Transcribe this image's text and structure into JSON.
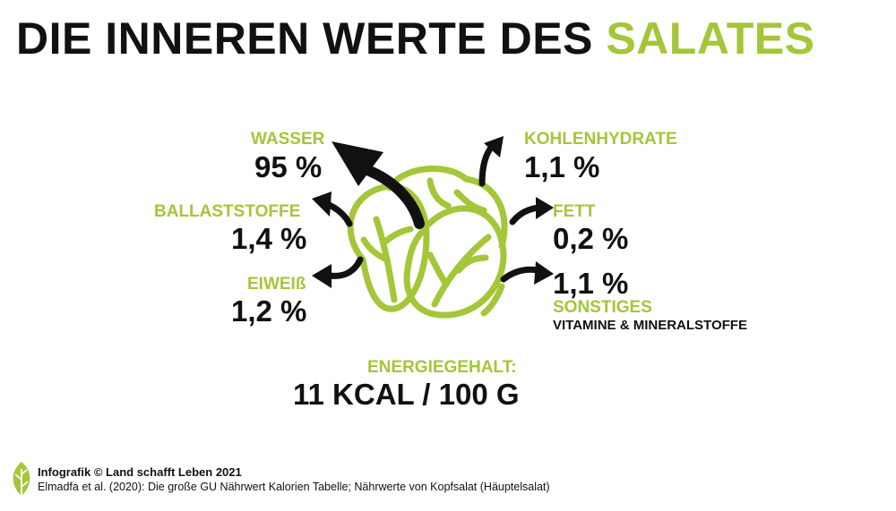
{
  "title": {
    "main": "DIE INNEREN WERTE DES",
    "accent": "SALATES"
  },
  "nutrients": {
    "wasser": {
      "label": "WASSER",
      "value": "95 %"
    },
    "ballaststoffe": {
      "label": "BALLASTSTOFFE",
      "value": "1,4 %"
    },
    "eiweiss": {
      "label": "EIWEIß",
      "value": "1,2 %"
    },
    "kohlenhydrate": {
      "label": "KOHLENHYDRATE",
      "value": "1,1 %"
    },
    "fett": {
      "label": "FETT",
      "value": "0,2 %"
    },
    "sonstiges": {
      "label": "SONSTIGES",
      "value": "1,1 %",
      "sub": "VITAMINE & MINERALSTOFFE"
    }
  },
  "energy": {
    "label": "ENERGIEGEHALT:",
    "value": "11 KCAL / 100 G"
  },
  "footer": {
    "credit": "Infografik © Land schafft Leben 2021",
    "source": "Elmadfa et al. (2020): Die große GU Nährwert Kalorien Tabelle; Nährwerte von Kopfsalat (Häuptelsalat)"
  },
  "colors": {
    "accent": "#a4c639",
    "text": "#111111"
  },
  "icons": {
    "illustration": "lettuce-icon",
    "logo": "leaf-logo-icon",
    "arrows": "curved-arrow-icon"
  }
}
